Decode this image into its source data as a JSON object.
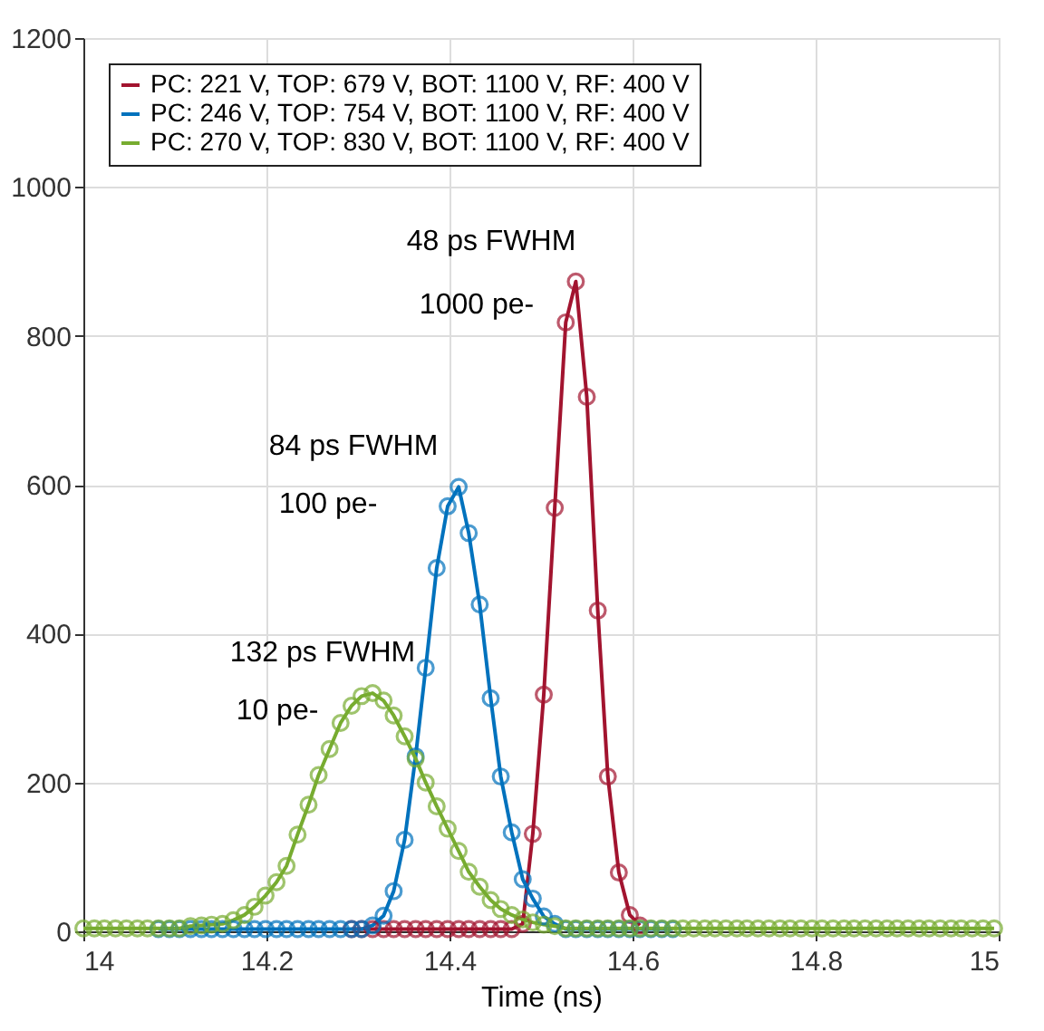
{
  "chart_data": {
    "type": "line",
    "xlabel": "Time (ns)",
    "x": [
      14.0,
      14.012,
      14.023,
      14.035,
      14.047,
      14.059,
      14.07,
      14.082,
      14.094,
      14.105,
      14.117,
      14.129,
      14.14,
      14.152,
      14.164,
      14.176,
      14.187,
      14.199,
      14.211,
      14.222,
      14.234,
      14.246,
      14.257,
      14.269,
      14.281,
      14.293,
      14.304,
      14.316,
      14.328,
      14.339,
      14.351,
      14.363,
      14.374,
      14.386,
      14.398,
      14.41,
      14.421,
      14.433,
      14.445,
      14.456,
      14.468,
      14.48,
      14.491,
      14.503,
      14.515,
      14.527,
      14.538,
      14.55,
      14.562,
      14.573,
      14.585,
      14.597,
      14.608,
      14.62,
      14.632,
      14.644,
      14.655,
      14.667,
      14.679,
      14.69,
      14.702,
      14.714,
      14.725,
      14.737,
      14.749,
      14.761,
      14.772,
      14.784,
      14.796,
      14.807,
      14.819,
      14.831,
      14.842,
      14.854,
      14.866,
      14.878,
      14.889,
      14.901,
      14.913,
      14.924,
      14.936,
      14.948,
      14.959,
      14.971,
      14.983,
      14.995
    ],
    "series": [
      {
        "name": "PC: 221 V, TOP: 679 V, BOT: 1100 V, RF: 400 V",
        "color": "#a2142f",
        "values": [
          null,
          null,
          null,
          null,
          null,
          null,
          null,
          null,
          null,
          null,
          null,
          null,
          null,
          null,
          null,
          null,
          null,
          null,
          null,
          null,
          null,
          null,
          null,
          null,
          null,
          3,
          3,
          3,
          3,
          3,
          3,
          3,
          3,
          3,
          3,
          3,
          3,
          3,
          3,
          3,
          3,
          10,
          131,
          318,
          569,
          818,
          873,
          718,
          431,
          208,
          79,
          22,
          8,
          null,
          null,
          null,
          null,
          null,
          null,
          null,
          null,
          null,
          null,
          null,
          null,
          null,
          null,
          null,
          null,
          null,
          null,
          null,
          null,
          null,
          null,
          null,
          null,
          null,
          null,
          null,
          null,
          null,
          null,
          null,
          null,
          null
        ]
      },
      {
        "name": "PC: 246 V, TOP: 754 V, BOT: 1100 V, RF: 400 V",
        "color": "#0072bd",
        "values": [
          null,
          null,
          null,
          null,
          null,
          null,
          null,
          3,
          3,
          3,
          3,
          3,
          3,
          3,
          3,
          3,
          3,
          3,
          3,
          3,
          3,
          3,
          3,
          3,
          3,
          3,
          3,
          8,
          21,
          54,
          123,
          235,
          354,
          488,
          571,
          597,
          535,
          439,
          313,
          208,
          133,
          70,
          44,
          20,
          10,
          3,
          3,
          3,
          3,
          3,
          3,
          3,
          3,
          3,
          3,
          3,
          null,
          null,
          null,
          null,
          null,
          null,
          null,
          null,
          null,
          null,
          null,
          null,
          null,
          null,
          null,
          null,
          null,
          null,
          null,
          null,
          null,
          null,
          null,
          null,
          null,
          null,
          null,
          null,
          null,
          null
        ]
      },
      {
        "name": "PC: 270 V, TOP: 830 V, BOT: 1100 V, RF: 400 V",
        "color": "#77ac30",
        "values": [
          4,
          4,
          4,
          4,
          4,
          4,
          4,
          4,
          4,
          4,
          7,
          8,
          9,
          10,
          15,
          22,
          33,
          48,
          66,
          88,
          130,
          170,
          210,
          245,
          280,
          303,
          316,
          320,
          310,
          290,
          262,
          232,
          200,
          168,
          138,
          108,
          80,
          60,
          42,
          30,
          22,
          16,
          12,
          9,
          7,
          4,
          4,
          4,
          4,
          4,
          4,
          4,
          4,
          4,
          4,
          4,
          4,
          4,
          4,
          4,
          4,
          4,
          4,
          4,
          4,
          4,
          4,
          4,
          4,
          4,
          4,
          4,
          4,
          4,
          4,
          4,
          4,
          4,
          4,
          4,
          4,
          4,
          4,
          4,
          4,
          4
        ]
      }
    ],
    "xlim": [
      14,
      15
    ],
    "xticks": [
      14,
      {
        "value": 14.2,
        "label": "14.2"
      },
      {
        "value": 14.4,
        "label": "14.4"
      },
      {
        "value": 14.6,
        "label": "14.6"
      },
      {
        "value": 14.8,
        "label": "14.8"
      },
      15
    ],
    "ylim": [
      0,
      1200
    ],
    "yticks": [
      0,
      200,
      400,
      600,
      800,
      1000,
      1200
    ],
    "grid": true,
    "legend": "top left",
    "marker": "circle",
    "line_style": "solid",
    "annotations": [
      "48 ps FWHM",
      "1000 pe-",
      "84 ps FWHM",
      "100 pe-",
      "132 ps FWHM",
      "10 pe-"
    ]
  }
}
